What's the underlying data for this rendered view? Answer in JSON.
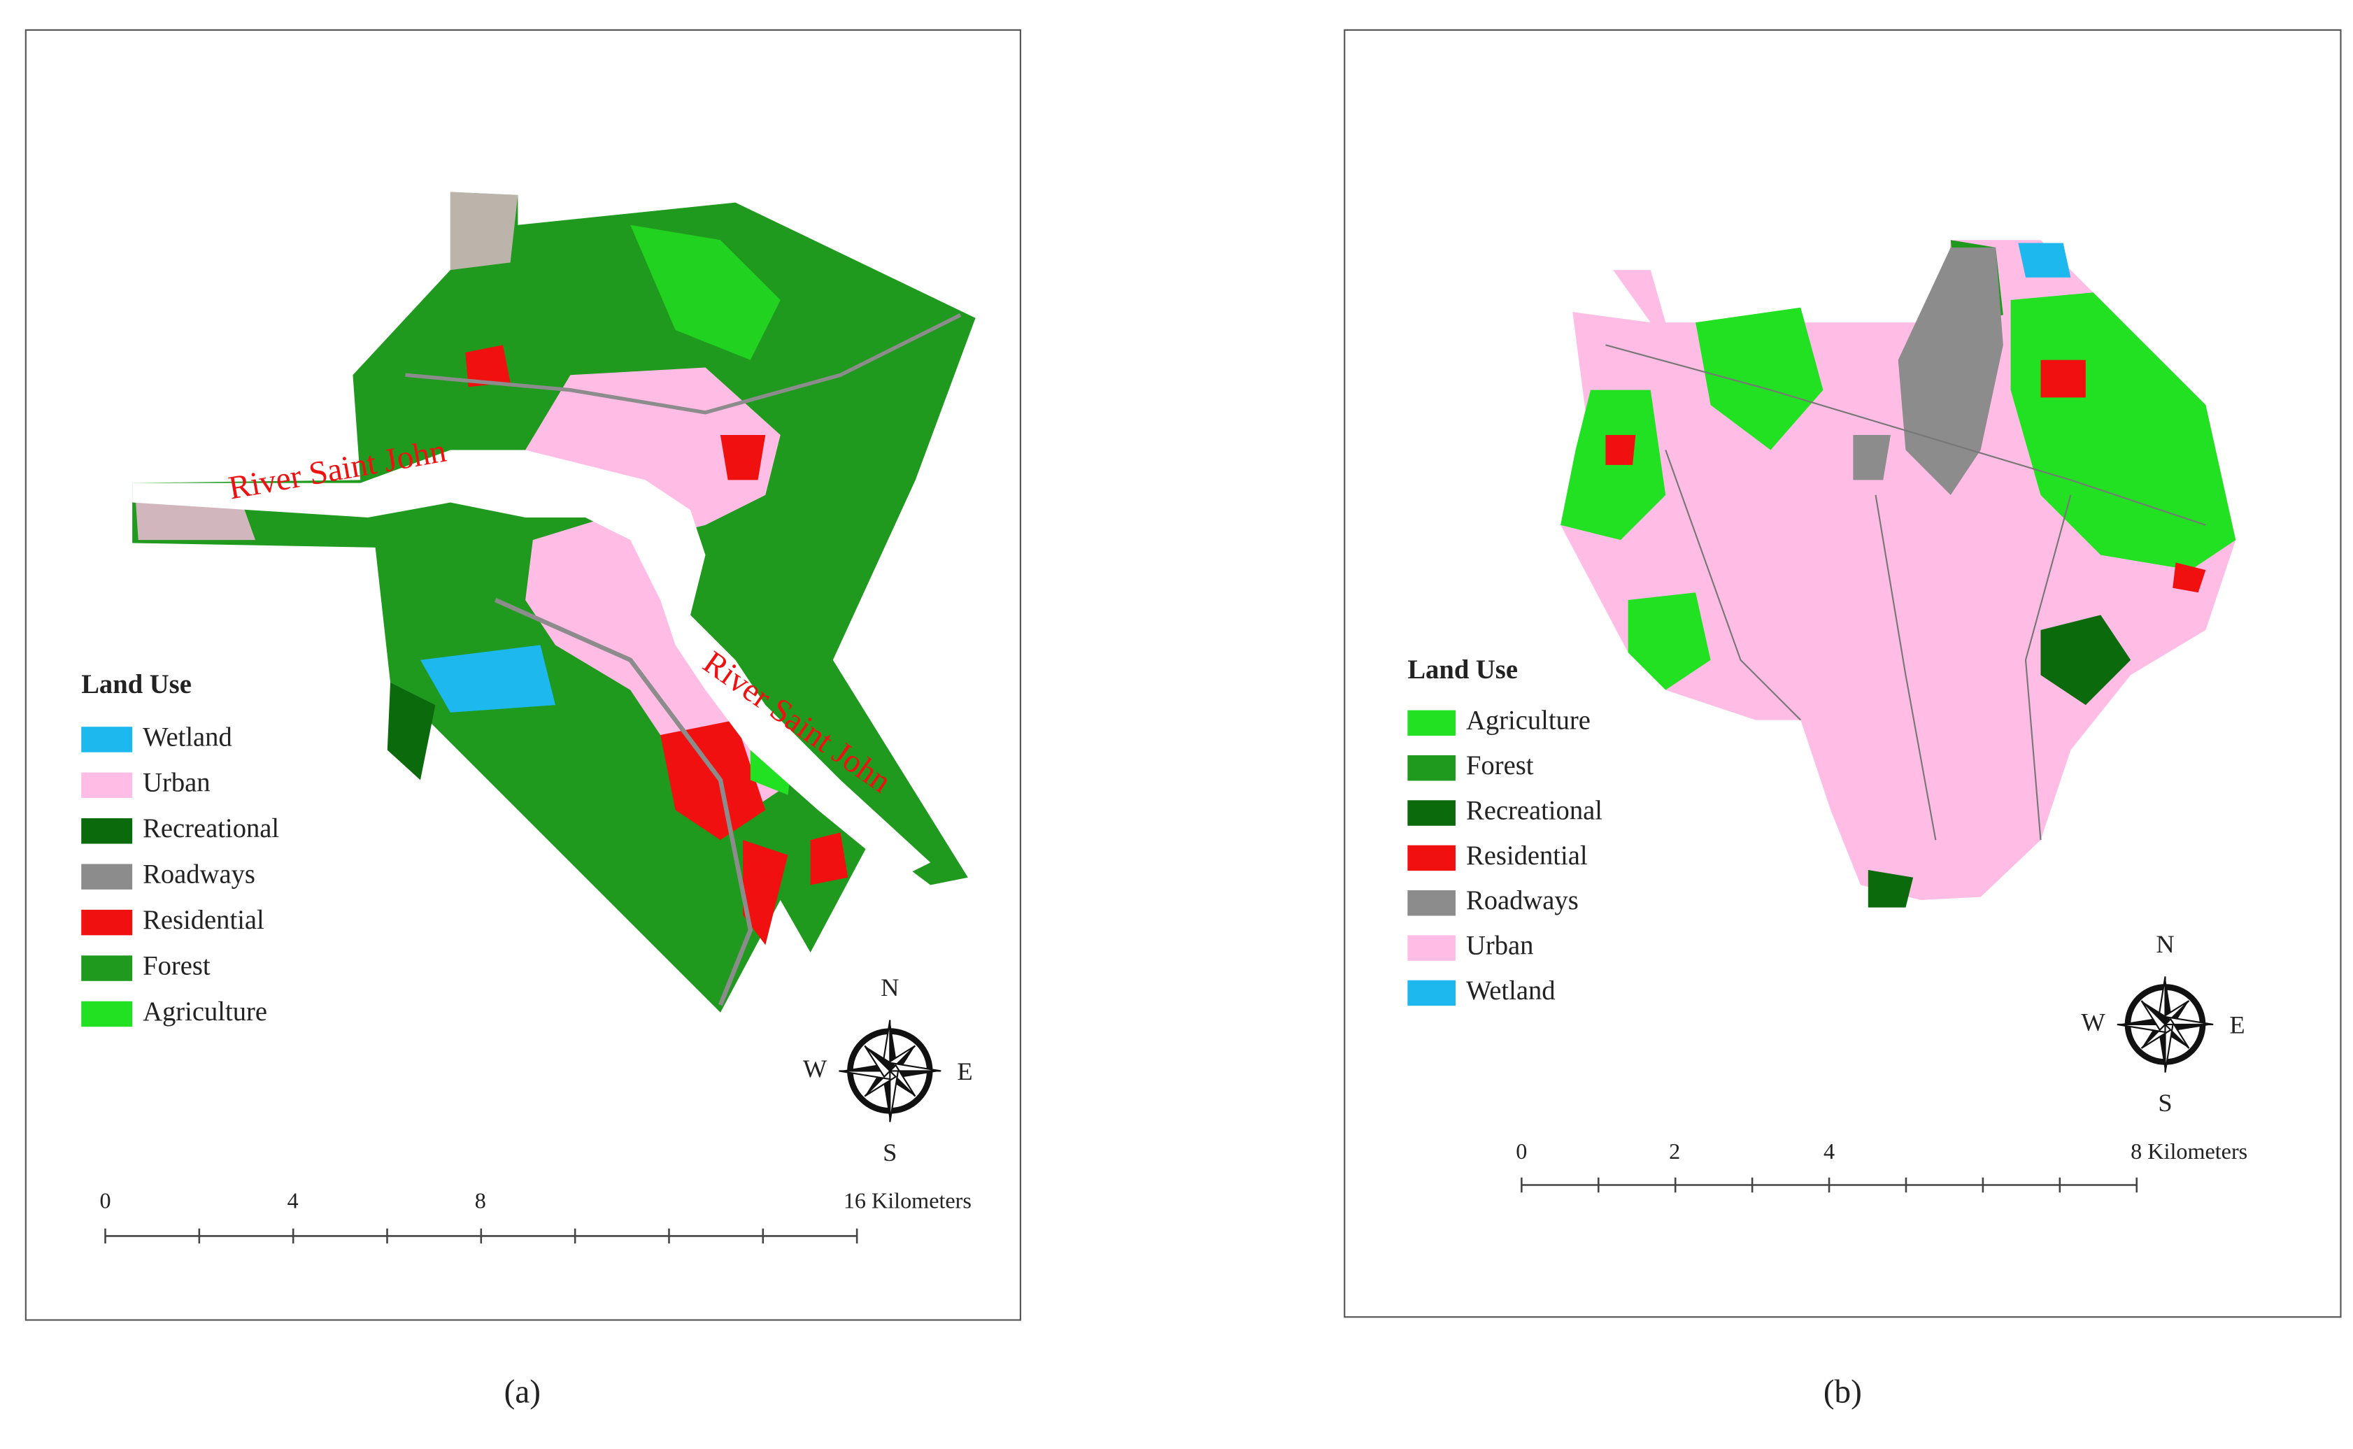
{
  "panels": [
    {
      "label": "(a)",
      "legend": {
        "title": "Land Use",
        "items": [
          {
            "name": "Wetland",
            "color": "#1cb8ee"
          },
          {
            "name": "Urban",
            "color": "#ffbde6"
          },
          {
            "name": "Recreational",
            "color": "#0b6a0b"
          },
          {
            "name": "Roadways",
            "color": "#8c8c8c"
          },
          {
            "name": "Residential",
            "color": "#f01010"
          },
          {
            "name": "Forest",
            "color": "#1f9a1f"
          },
          {
            "name": "Agriculture",
            "color": "#22e022"
          }
        ]
      },
      "river_labels": [
        "River Saint John",
        "River Saint John"
      ],
      "compass": {
        "n": "N",
        "s": "S",
        "w": "W",
        "e": "E"
      },
      "scale_bar": [
        "0",
        "4",
        "8",
        "16 Kilometers"
      ]
    },
    {
      "label": "(b)",
      "legend": {
        "title": "Land Use",
        "items": [
          {
            "name": "Agriculture",
            "color": "#22e022"
          },
          {
            "name": "Forest",
            "color": "#1f9a1f"
          },
          {
            "name": "Recreational",
            "color": "#0b6a0b"
          },
          {
            "name": "Residential",
            "color": "#f01010"
          },
          {
            "name": "Roadways",
            "color": "#8c8c8c"
          },
          {
            "name": "Urban",
            "color": "#ffbde6"
          },
          {
            "name": "Wetland",
            "color": "#1cb8ee"
          }
        ]
      },
      "compass": {
        "n": "N",
        "s": "S",
        "w": "W",
        "e": "E"
      },
      "scale_bar": [
        "0",
        "2",
        "4",
        "8 Kilometers"
      ]
    }
  ]
}
